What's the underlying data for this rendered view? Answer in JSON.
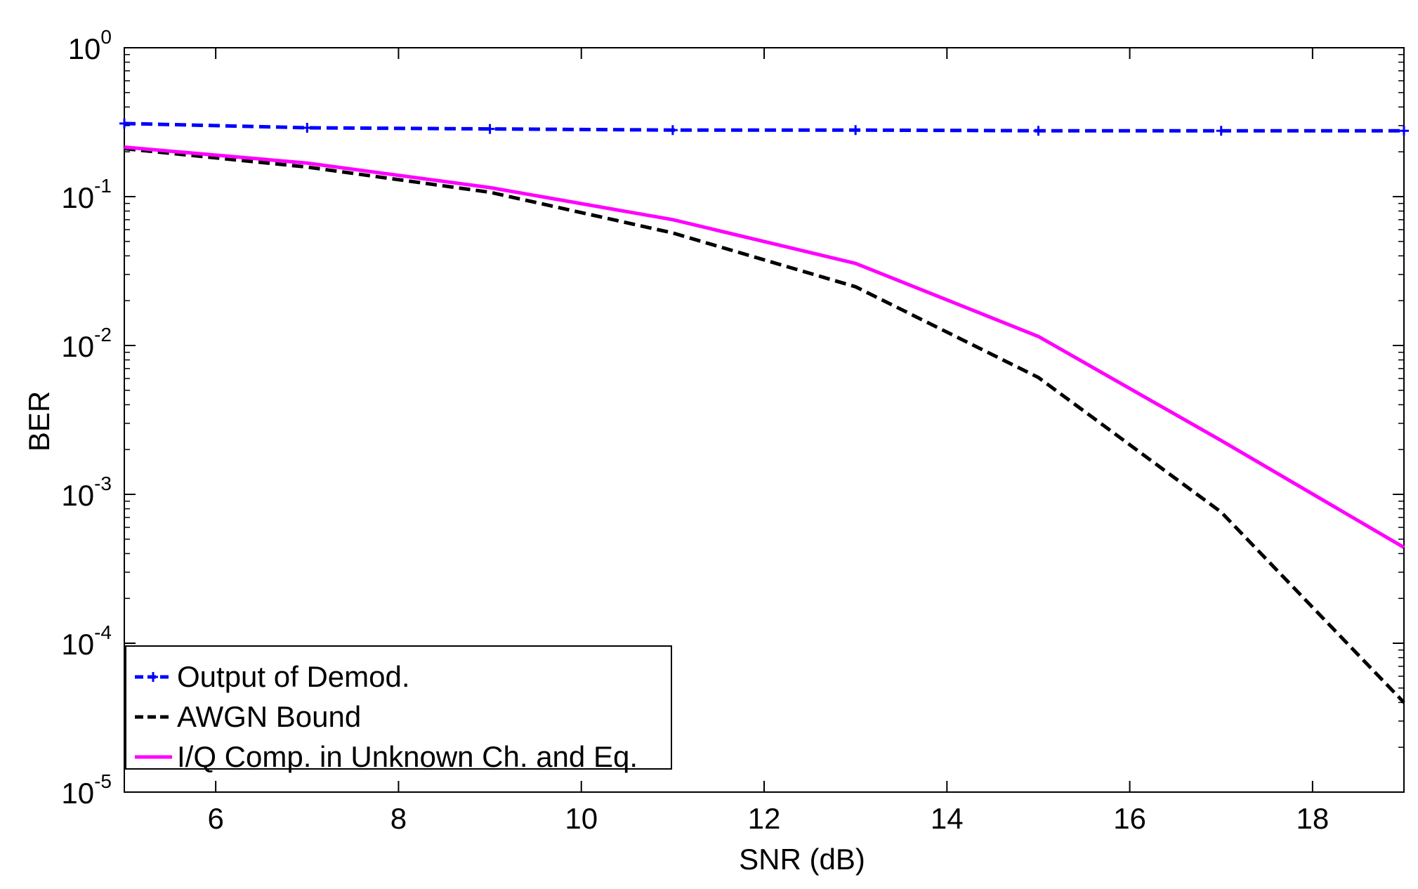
{
  "chart_data": {
    "type": "line",
    "title": "",
    "xlabel": "SNR (dB)",
    "ylabel": "BER",
    "xlim": [
      5,
      19
    ],
    "ylim": [
      1e-05,
      1
    ],
    "yscale": "log",
    "xticks": [
      6,
      8,
      10,
      12,
      14,
      16,
      18
    ],
    "xtick_labels": [
      "6",
      "8",
      "10",
      "12",
      "14",
      "16",
      "18"
    ],
    "yticks": [
      0,
      -1,
      -2,
      -3,
      -4,
      -5
    ],
    "ytick_base": "10",
    "ytick_exponents": [
      "0",
      "-1",
      "-2",
      "-3",
      "-4",
      "-5"
    ],
    "grid": false,
    "legend_position": "bottom-left",
    "x": [
      5,
      7,
      9,
      11,
      13,
      15,
      17,
      19
    ],
    "series": [
      {
        "name": "Output of Demod.",
        "color": "#0000ff",
        "style": "dashed-marker",
        "values": [
          0.31,
          0.29,
          0.285,
          0.28,
          0.28,
          0.277,
          0.277,
          0.277
        ]
      },
      {
        "name": "AWGN Bound",
        "color": "#000000",
        "style": "dashed",
        "values": [
          0.21,
          0.158,
          0.107,
          0.057,
          0.0248,
          0.0061,
          0.00076,
          4e-05
        ]
      },
      {
        "name": "I/Q Comp. in Unknown Ch. and Eq.",
        "color": "#ff00ff",
        "style": "solid",
        "values": [
          0.215,
          0.168,
          0.115,
          0.07,
          0.0356,
          0.0115,
          0.0023,
          0.00044
        ]
      }
    ]
  }
}
